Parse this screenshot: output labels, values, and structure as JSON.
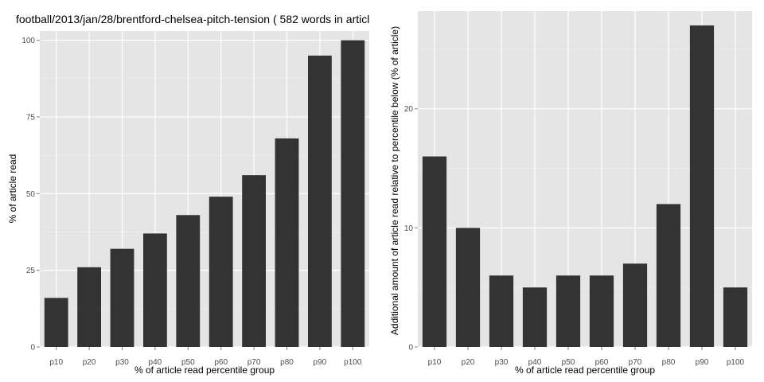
{
  "title": "football/2013/jan/28/brentford-chelsea-pitch-tension ( 582 words in articl",
  "colors": {
    "bar": "#333333",
    "panel_bg": "#e5e5e5",
    "grid_major": "#ffffff",
    "grid_minor": "#f2f2f2",
    "tick_text": "#4d4d4d"
  },
  "chart_data": [
    {
      "type": "bar",
      "title": "football/2013/jan/28/brentford-chelsea-pitch-tension ( 582 words in articl",
      "categories": [
        "p10",
        "p20",
        "p30",
        "p40",
        "p50",
        "p60",
        "p70",
        "p80",
        "p90",
        "p100"
      ],
      "values": [
        16,
        26,
        32,
        37,
        43,
        49,
        56,
        68,
        95,
        100
      ],
      "xlabel": "% of article read percentile group",
      "ylabel": "% of article read",
      "ylim": [
        0,
        103
      ],
      "yticks": [
        0,
        25,
        50,
        75,
        100
      ],
      "grid": true
    },
    {
      "type": "bar",
      "categories": [
        "p10",
        "p20",
        "p30",
        "p40",
        "p50",
        "p60",
        "p70",
        "p80",
        "p90",
        "p100"
      ],
      "values": [
        16,
        10,
        6,
        5,
        6,
        6,
        7,
        12,
        27,
        5
      ],
      "xlabel": "% of article read percentile group",
      "ylabel": "Additional amount of article read relative to percentile below (% of article)",
      "ylim": [
        0,
        28.2
      ],
      "yticks": [
        0,
        10,
        20
      ],
      "grid": true
    }
  ]
}
